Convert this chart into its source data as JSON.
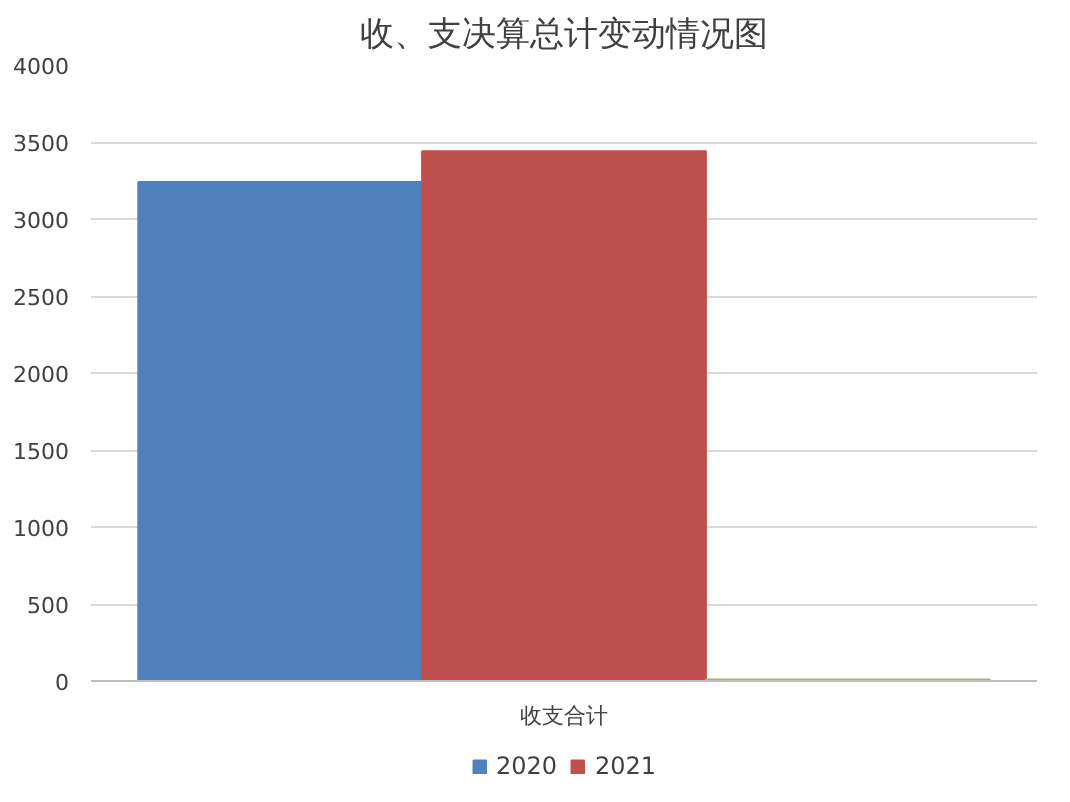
{
  "chart_data": {
    "type": "bar",
    "title": "收、支决算总计变动情况图",
    "categories": [
      "收支合计"
    ],
    "series": [
      {
        "name": "2020",
        "color": "#4f81bd",
        "values": [
          3240
        ]
      },
      {
        "name": "2021",
        "color": "#c0504d",
        "values": [
          3440
        ]
      },
      {
        "color": "#9bbb59",
        "values": [
          10
        ]
      }
    ],
    "ylim": [
      0,
      4000
    ],
    "yticks": [
      0,
      500,
      1000,
      1500,
      2000,
      2500,
      3000,
      3500,
      4000
    ],
    "grid": "y",
    "legend": "bottom"
  }
}
